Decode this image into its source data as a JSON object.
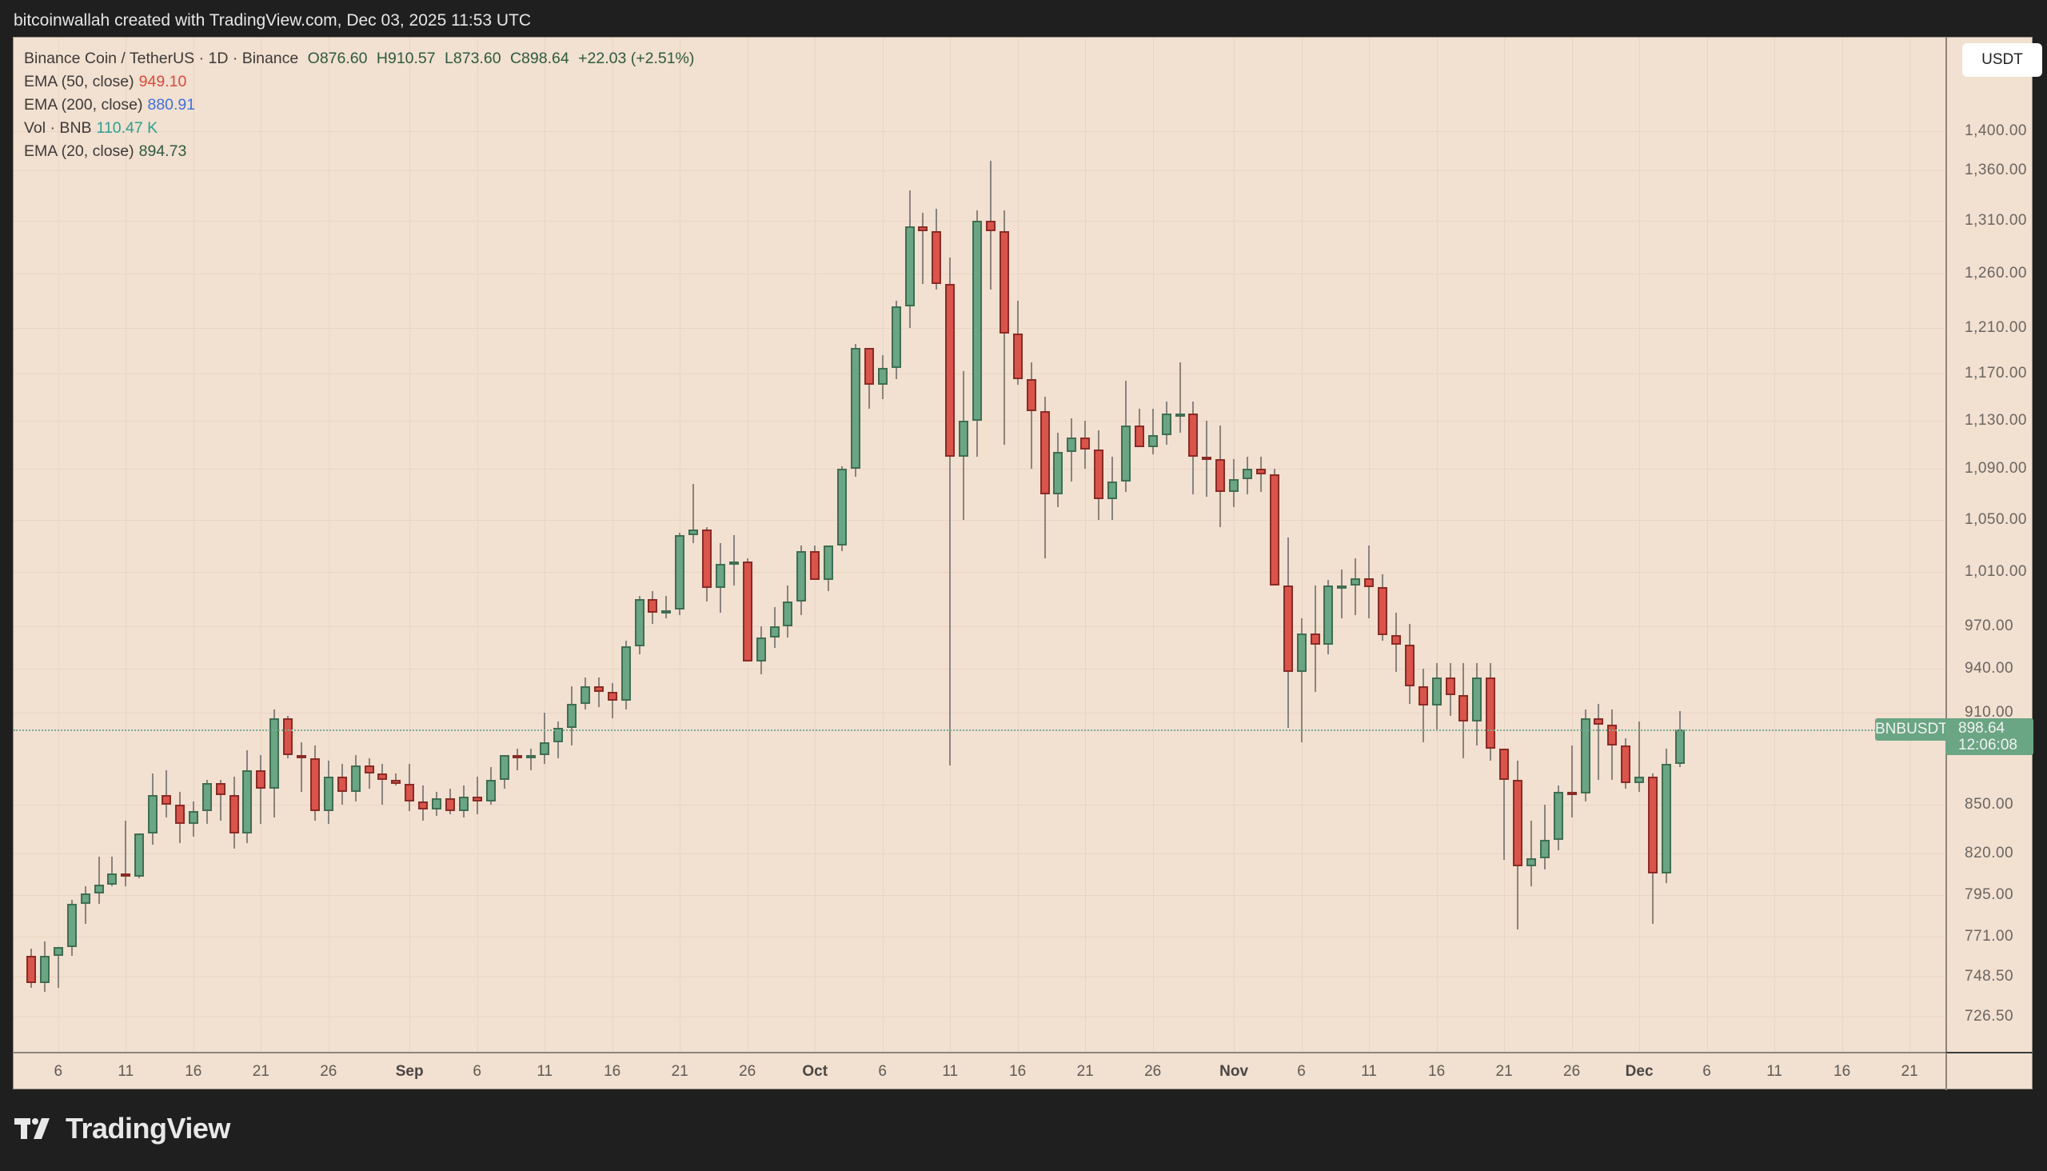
{
  "header": {
    "attribution": "bitcoinwallah created with TradingView.com, Dec 03, 2025 11:53 UTC"
  },
  "legend": {
    "symbol": "Binance Coin / TetherUS · 1D · Binance",
    "open": "O876.60",
    "high": "H910.57",
    "low": "L873.60",
    "close": "C898.64",
    "change": "+22.03 (+2.51%)",
    "indicators": [
      {
        "label": "EMA (50, close)",
        "value": "949.10",
        "color": "#d94a3d"
      },
      {
        "label": "EMA (200, close)",
        "value": "880.91",
        "color": "#3f6fe0"
      },
      {
        "label": "Vol · BNB",
        "value": "110.47 K",
        "color": "#2aa192"
      },
      {
        "label": "EMA (20, close)",
        "value": "894.73",
        "color": "#2c5a3e"
      }
    ]
  },
  "price_axis": {
    "currency_button": "USDT",
    "ticks": [
      "1,400.00",
      "1,360.00",
      "1,310.00",
      "1,260.00",
      "1,210.00",
      "1,170.00",
      "1,130.00",
      "1,090.00",
      "1,050.00",
      "1,010.00",
      "970.00",
      "940.00",
      "910.00",
      "850.00",
      "820.00",
      "795.00",
      "771.00",
      "748.50",
      "726.50"
    ]
  },
  "last_price": {
    "symbol": "BNBUSDT",
    "price": "898.64",
    "countdown": "12:06:08"
  },
  "time_axis": {
    "ticks": [
      {
        "label": "6",
        "bold": false
      },
      {
        "label": "11",
        "bold": false
      },
      {
        "label": "16",
        "bold": false
      },
      {
        "label": "21",
        "bold": false
      },
      {
        "label": "26",
        "bold": false
      },
      {
        "label": "Sep",
        "bold": true
      },
      {
        "label": "6",
        "bold": false
      },
      {
        "label": "11",
        "bold": false
      },
      {
        "label": "16",
        "bold": false
      },
      {
        "label": "21",
        "bold": false
      },
      {
        "label": "26",
        "bold": false
      },
      {
        "label": "Oct",
        "bold": true
      },
      {
        "label": "6",
        "bold": false
      },
      {
        "label": "11",
        "bold": false
      },
      {
        "label": "16",
        "bold": false
      },
      {
        "label": "21",
        "bold": false
      },
      {
        "label": "26",
        "bold": false
      },
      {
        "label": "Nov",
        "bold": true
      },
      {
        "label": "6",
        "bold": false
      },
      {
        "label": "11",
        "bold": false
      },
      {
        "label": "16",
        "bold": false
      },
      {
        "label": "21",
        "bold": false
      },
      {
        "label": "26",
        "bold": false
      },
      {
        "label": "Dec",
        "bold": true
      },
      {
        "label": "6",
        "bold": false
      },
      {
        "label": "11",
        "bold": false
      },
      {
        "label": "16",
        "bold": false
      },
      {
        "label": "21",
        "bold": false
      }
    ]
  },
  "branding": {
    "name": "TradingView"
  },
  "colors": {
    "up": "#6aa584",
    "down": "#d9544a",
    "background": "#f2e0d0"
  },
  "chart_data": {
    "type": "candlestick",
    "title": "Binance Coin / TetherUS · 1D · Binance",
    "xlabel": "",
    "ylabel": "USDT",
    "yscale": "log",
    "ylim": [
      700,
      1440
    ],
    "x_start": "2025-08-04",
    "legend_position": "top-left",
    "grid": true,
    "ohlc": [
      [
        760,
        764,
        742,
        745
      ],
      [
        745,
        768,
        740,
        760
      ],
      [
        760,
        764,
        742,
        765
      ],
      [
        765,
        792,
        760,
        790
      ],
      [
        790,
        800,
        778,
        796
      ],
      [
        796,
        818,
        790,
        801
      ],
      [
        801,
        818,
        800,
        808
      ],
      [
        808,
        840,
        800,
        806
      ],
      [
        806,
        830,
        805,
        832
      ],
      [
        832,
        870,
        825,
        856
      ],
      [
        856,
        872,
        842,
        850
      ],
      [
        850,
        858,
        826,
        838
      ],
      [
        838,
        852,
        830,
        846
      ],
      [
        846,
        866,
        838,
        864
      ],
      [
        864,
        866,
        840,
        856
      ],
      [
        856,
        868,
        823,
        832
      ],
      [
        832,
        885,
        826,
        872
      ],
      [
        872,
        882,
        838,
        860
      ],
      [
        860,
        912,
        842,
        906
      ],
      [
        906,
        908,
        880,
        882
      ],
      [
        882,
        890,
        858,
        880
      ],
      [
        880,
        888,
        840,
        846
      ],
      [
        846,
        878,
        838,
        868
      ],
      [
        868,
        876,
        850,
        858
      ],
      [
        858,
        882,
        852,
        875
      ],
      [
        875,
        880,
        860,
        870
      ],
      [
        870,
        876,
        850,
        866
      ],
      [
        866,
        870,
        862,
        863
      ],
      [
        863,
        876,
        846,
        852
      ],
      [
        852,
        862,
        840,
        847
      ],
      [
        847,
        858,
        843,
        854
      ],
      [
        854,
        860,
        844,
        846
      ],
      [
        846,
        862,
        842,
        855
      ],
      [
        855,
        868,
        844,
        852
      ],
      [
        852,
        874,
        850,
        866
      ],
      [
        866,
        880,
        860,
        882
      ],
      [
        882,
        886,
        872,
        880
      ],
      [
        880,
        886,
        872,
        882
      ],
      [
        882,
        910,
        876,
        890
      ],
      [
        890,
        904,
        880,
        900
      ],
      [
        900,
        928,
        888,
        916
      ],
      [
        916,
        934,
        912,
        928
      ],
      [
        928,
        934,
        914,
        924
      ],
      [
        924,
        930,
        906,
        918
      ],
      [
        918,
        960,
        912,
        956
      ],
      [
        956,
        992,
        950,
        990
      ],
      [
        990,
        996,
        972,
        980
      ],
      [
        980,
        992,
        976,
        982
      ],
      [
        982,
        1040,
        978,
        1038
      ],
      [
        1038,
        1078,
        1032,
        1042
      ],
      [
        1042,
        1044,
        988,
        998
      ],
      [
        998,
        1032,
        980,
        1016
      ],
      [
        1016,
        1038,
        1000,
        1018
      ],
      [
        1018,
        1020,
        952,
        945
      ],
      [
        945,
        970,
        936,
        962
      ],
      [
        962,
        984,
        955,
        970
      ],
      [
        970,
        1000,
        962,
        988
      ],
      [
        988,
        1030,
        978,
        1026
      ],
      [
        1026,
        1030,
        1010,
        1004
      ],
      [
        1004,
        1030,
        996,
        1030
      ],
      [
        1030,
        1092,
        1026,
        1090
      ],
      [
        1090,
        1196,
        1084,
        1192
      ],
      [
        1192,
        1192,
        1140,
        1160
      ],
      [
        1160,
        1186,
        1148,
        1175
      ],
      [
        1175,
        1235,
        1165,
        1230
      ],
      [
        1230,
        1340,
        1210,
        1305
      ],
      [
        1305,
        1318,
        1250,
        1300
      ],
      [
        1300,
        1322,
        1245,
        1250
      ],
      [
        1250,
        1275,
        875,
        1100
      ],
      [
        1100,
        1172,
        1050,
        1130
      ],
      [
        1130,
        1320,
        1100,
        1310
      ],
      [
        1310,
        1370,
        1245,
        1300
      ],
      [
        1300,
        1320,
        1110,
        1205
      ],
      [
        1205,
        1235,
        1160,
        1165
      ],
      [
        1165,
        1180,
        1090,
        1138
      ],
      [
        1138,
        1150,
        1020,
        1070
      ],
      [
        1070,
        1120,
        1060,
        1104
      ],
      [
        1104,
        1132,
        1080,
        1116
      ],
      [
        1116,
        1130,
        1090,
        1106
      ],
      [
        1106,
        1122,
        1050,
        1066
      ],
      [
        1066,
        1100,
        1050,
        1080
      ],
      [
        1080,
        1164,
        1072,
        1126
      ],
      [
        1126,
        1140,
        1120,
        1108
      ],
      [
        1108,
        1140,
        1102,
        1118
      ],
      [
        1118,
        1146,
        1110,
        1136
      ],
      [
        1136,
        1180,
        1120,
        1136
      ],
      [
        1136,
        1146,
        1070,
        1100
      ],
      [
        1100,
        1130,
        1068,
        1098
      ],
      [
        1098,
        1126,
        1044,
        1072
      ],
      [
        1072,
        1098,
        1060,
        1082
      ],
      [
        1082,
        1100,
        1070,
        1090
      ],
      [
        1090,
        1100,
        1072,
        1086
      ],
      [
        1086,
        1090,
        1020,
        1000
      ],
      [
        1000,
        1036,
        900,
        938
      ],
      [
        938,
        976,
        890,
        965
      ],
      [
        965,
        1000,
        924,
        957
      ],
      [
        957,
        1004,
        950,
        1000
      ],
      [
        1000,
        1012,
        976,
        1000
      ],
      [
        1000,
        1020,
        978,
        1005
      ],
      [
        1005,
        1030,
        976,
        999
      ],
      [
        999,
        1008,
        960,
        964
      ],
      [
        964,
        980,
        938,
        957
      ],
      [
        957,
        972,
        916,
        928
      ],
      [
        928,
        940,
        890,
        915
      ],
      [
        915,
        944,
        898,
        934
      ],
      [
        934,
        944,
        908,
        922
      ],
      [
        922,
        944,
        880,
        904
      ],
      [
        904,
        944,
        888,
        934
      ],
      [
        934,
        944,
        878,
        886
      ],
      [
        886,
        884,
        816,
        866
      ],
      [
        866,
        878,
        775,
        812
      ],
      [
        812,
        840,
        800,
        817
      ],
      [
        817,
        850,
        810,
        828
      ],
      [
        828,
        862,
        822,
        858
      ],
      [
        858,
        888,
        842,
        857
      ],
      [
        857,
        912,
        852,
        906
      ],
      [
        906,
        916,
        866,
        902
      ],
      [
        902,
        912,
        866,
        888
      ],
      [
        888,
        893,
        860,
        864
      ],
      [
        864,
        904,
        858,
        868
      ],
      [
        868,
        870,
        778,
        808
      ],
      [
        808,
        886,
        802,
        876
      ],
      [
        876,
        911,
        874,
        899
      ]
    ]
  }
}
